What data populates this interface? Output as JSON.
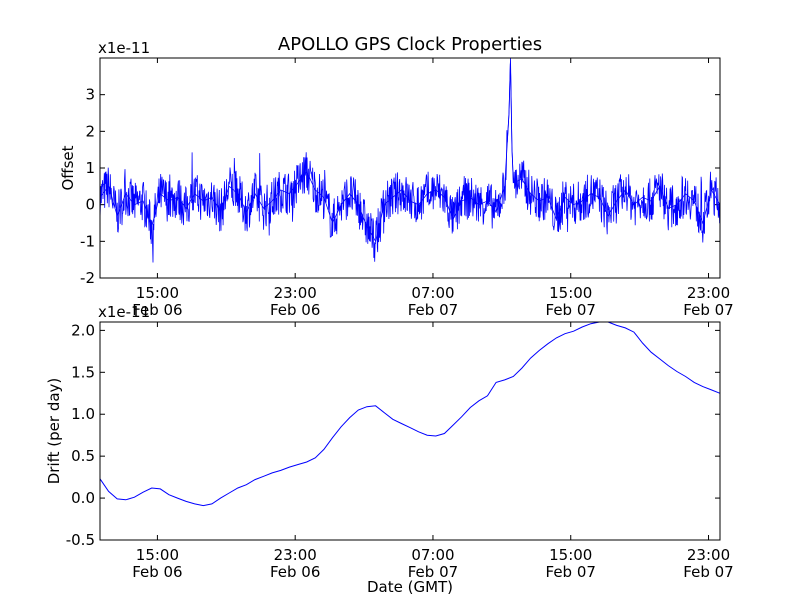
{
  "chart_data": [
    {
      "type": "line",
      "title": "APOLLO GPS Clock Properties",
      "xlabel": "",
      "ylabel": "Offset",
      "y_scale_label": "x1e-11",
      "ylim": [
        -2,
        4
      ],
      "xlim": [
        "Feb 06 11:40",
        "Feb 07 23:40"
      ],
      "yticks": [
        -2,
        -1,
        0,
        1,
        2,
        3
      ],
      "ytick_labels": [
        "-2",
        "-1",
        "0",
        "1",
        "2",
        "3"
      ],
      "xticks": [
        {
          "time": "15:00",
          "date": "Feb 06"
        },
        {
          "time": "23:00",
          "date": "Feb 06"
        },
        {
          "time": "07:00",
          "date": "Feb 07"
        },
        {
          "time": "15:00",
          "date": "Feb 07"
        },
        {
          "time": "23:00",
          "date": "Feb 07"
        }
      ],
      "grid": false,
      "color": "#0000ff",
      "series": [
        {
          "points": [
            [
              "Feb 06 11:40",
              0.2
            ],
            [
              "Feb 06 12:10",
              0.5
            ],
            [
              "Feb 06 12:40",
              -0.3
            ],
            [
              "Feb 06 13:10",
              0.3
            ],
            [
              "Feb 06 13:40",
              0.0
            ],
            [
              "Feb 06 14:10",
              0.1
            ],
            [
              "Feb 06 14:40",
              -0.6
            ],
            [
              "Feb 06 15:10",
              0.3
            ],
            [
              "Feb 06 15:40",
              0.1
            ],
            [
              "Feb 06 16:10",
              0.2
            ],
            [
              "Feb 06 16:40",
              -0.1
            ],
            [
              "Feb 06 17:10",
              0.3
            ],
            [
              "Feb 06 17:40",
              0.1
            ],
            [
              "Feb 06 18:10",
              0.2
            ],
            [
              "Feb 06 18:40",
              -0.2
            ],
            [
              "Feb 06 19:10",
              0.5
            ],
            [
              "Feb 06 19:40",
              0.3
            ],
            [
              "Feb 06 20:10",
              -0.2
            ],
            [
              "Feb 06 20:40",
              0.3
            ],
            [
              "Feb 06 21:10",
              -0.1
            ],
            [
              "Feb 06 21:40",
              0.1
            ],
            [
              "Feb 06 22:10",
              0.4
            ],
            [
              "Feb 06 22:40",
              0.3
            ],
            [
              "Feb 06 23:10",
              0.6
            ],
            [
              "Feb 06 23:40",
              0.9
            ],
            [
              "Feb 07 00:10",
              0.4
            ],
            [
              "Feb 07 00:40",
              0.2
            ],
            [
              "Feb 07 01:10",
              -0.5
            ],
            [
              "Feb 07 01:40",
              0.0
            ],
            [
              "Feb 07 02:10",
              0.3
            ],
            [
              "Feb 07 02:40",
              0.0
            ],
            [
              "Feb 07 03:10",
              -0.6
            ],
            [
              "Feb 07 03:40",
              -1.0
            ],
            [
              "Feb 07 04:10",
              0.0
            ],
            [
              "Feb 07 04:40",
              0.2
            ],
            [
              "Feb 07 05:10",
              0.4
            ],
            [
              "Feb 07 05:40",
              0.1
            ],
            [
              "Feb 07 06:10",
              0.0
            ],
            [
              "Feb 07 06:40",
              0.3
            ],
            [
              "Feb 07 07:10",
              0.4
            ],
            [
              "Feb 07 07:40",
              0.2
            ],
            [
              "Feb 07 08:10",
              -0.4
            ],
            [
              "Feb 07 08:40",
              0.1
            ],
            [
              "Feb 07 09:10",
              0.2
            ],
            [
              "Feb 07 09:40",
              0.0
            ],
            [
              "Feb 07 10:10",
              0.1
            ],
            [
              "Feb 07 10:40",
              -0.2
            ],
            [
              "Feb 07 11:10",
              0.5
            ],
            [
              "Feb 07 11:25",
              2.5
            ],
            [
              "Feb 07 11:30",
              4.0
            ],
            [
              "Feb 07 11:35",
              1.6
            ],
            [
              "Feb 07 11:40",
              0.6
            ],
            [
              "Feb 07 12:10",
              0.7
            ],
            [
              "Feb 07 12:40",
              0.3
            ],
            [
              "Feb 07 13:10",
              0.1
            ],
            [
              "Feb 07 13:40",
              0.2
            ],
            [
              "Feb 07 14:10",
              -0.4
            ],
            [
              "Feb 07 14:40",
              0.2
            ],
            [
              "Feb 07 15:10",
              0.0
            ],
            [
              "Feb 07 15:40",
              0.1
            ],
            [
              "Feb 07 16:10",
              0.3
            ],
            [
              "Feb 07 16:40",
              0.2
            ],
            [
              "Feb 07 17:10",
              -0.3
            ],
            [
              "Feb 07 17:40",
              0.1
            ],
            [
              "Feb 07 18:10",
              0.4
            ],
            [
              "Feb 07 18:40",
              0.0
            ],
            [
              "Feb 07 19:10",
              0.2
            ],
            [
              "Feb 07 19:40",
              0.1
            ],
            [
              "Feb 07 20:10",
              0.5
            ],
            [
              "Feb 07 20:40",
              -0.1
            ],
            [
              "Feb 07 21:10",
              0.0
            ],
            [
              "Feb 07 21:40",
              0.3
            ],
            [
              "Feb 07 22:10",
              0.1
            ],
            [
              "Feb 07 22:40",
              -0.5
            ],
            [
              "Feb 07 23:10",
              0.4
            ],
            [
              "Feb 07 23:40",
              0.0
            ]
          ]
        }
      ]
    },
    {
      "type": "line",
      "title": "",
      "xlabel": "Date (GMT)",
      "ylabel": "Drift (per day)",
      "y_scale_label": "x1e-11",
      "ylim": [
        -0.5,
        2.1
      ],
      "xlim": [
        "Feb 06 11:40",
        "Feb 07 23:40"
      ],
      "yticks": [
        -0.5,
        0.0,
        0.5,
        1.0,
        1.5,
        2.0
      ],
      "ytick_labels": [
        "-0.5",
        "0.0",
        "0.5",
        "1.0",
        "1.5",
        "2.0"
      ],
      "xticks": [
        {
          "time": "15:00",
          "date": "Feb 06"
        },
        {
          "time": "23:00",
          "date": "Feb 06"
        },
        {
          "time": "07:00",
          "date": "Feb 07"
        },
        {
          "time": "15:00",
          "date": "Feb 07"
        },
        {
          "time": "23:00",
          "date": "Feb 07"
        }
      ],
      "grid": false,
      "color": "#0000ff",
      "series": [
        {
          "points": [
            [
              "Feb 06 11:40",
              0.23
            ],
            [
              "Feb 06 12:10",
              0.08
            ],
            [
              "Feb 06 12:40",
              -0.01
            ],
            [
              "Feb 06 13:10",
              -0.02
            ],
            [
              "Feb 06 13:40",
              0.01
            ],
            [
              "Feb 06 14:10",
              0.07
            ],
            [
              "Feb 06 14:40",
              0.12
            ],
            [
              "Feb 06 15:10",
              0.11
            ],
            [
              "Feb 06 15:40",
              0.04
            ],
            [
              "Feb 06 16:10",
              0.0
            ],
            [
              "Feb 06 16:40",
              -0.04
            ],
            [
              "Feb 06 17:10",
              -0.07
            ],
            [
              "Feb 06 17:40",
              -0.09
            ],
            [
              "Feb 06 18:10",
              -0.07
            ],
            [
              "Feb 06 18:40",
              0.0
            ],
            [
              "Feb 06 19:10",
              0.06
            ],
            [
              "Feb 06 19:40",
              0.12
            ],
            [
              "Feb 06 20:10",
              0.16
            ],
            [
              "Feb 06 20:40",
              0.22
            ],
            [
              "Feb 06 21:10",
              0.26
            ],
            [
              "Feb 06 21:40",
              0.3
            ],
            [
              "Feb 06 22:10",
              0.33
            ],
            [
              "Feb 06 22:40",
              0.37
            ],
            [
              "Feb 06 23:10",
              0.4
            ],
            [
              "Feb 06 23:40",
              0.43
            ],
            [
              "Feb 07 00:10",
              0.48
            ],
            [
              "Feb 07 00:40",
              0.58
            ],
            [
              "Feb 07 01:10",
              0.72
            ],
            [
              "Feb 07 01:40",
              0.85
            ],
            [
              "Feb 07 02:10",
              0.96
            ],
            [
              "Feb 07 02:40",
              1.05
            ],
            [
              "Feb 07 03:10",
              1.09
            ],
            [
              "Feb 07 03:40",
              1.1
            ],
            [
              "Feb 07 04:10",
              1.02
            ],
            [
              "Feb 07 04:40",
              0.94
            ],
            [
              "Feb 07 05:10",
              0.89
            ],
            [
              "Feb 07 05:40",
              0.84
            ],
            [
              "Feb 07 06:10",
              0.79
            ],
            [
              "Feb 07 06:40",
              0.75
            ],
            [
              "Feb 07 07:10",
              0.74
            ],
            [
              "Feb 07 07:40",
              0.77
            ],
            [
              "Feb 07 08:10",
              0.87
            ],
            [
              "Feb 07 08:40",
              0.97
            ],
            [
              "Feb 07 09:10",
              1.08
            ],
            [
              "Feb 07 09:40",
              1.16
            ],
            [
              "Feb 07 10:10",
              1.22
            ],
            [
              "Feb 07 10:40",
              1.38
            ],
            [
              "Feb 07 11:10",
              1.41
            ],
            [
              "Feb 07 11:40",
              1.45
            ],
            [
              "Feb 07 12:10",
              1.55
            ],
            [
              "Feb 07 12:40",
              1.67
            ],
            [
              "Feb 07 13:10",
              1.76
            ],
            [
              "Feb 07 13:40",
              1.84
            ],
            [
              "Feb 07 14:10",
              1.91
            ],
            [
              "Feb 07 14:40",
              1.96
            ],
            [
              "Feb 07 15:10",
              1.99
            ],
            [
              "Feb 07 15:40",
              2.04
            ],
            [
              "Feb 07 16:10",
              2.08
            ],
            [
              "Feb 07 16:40",
              2.1
            ],
            [
              "Feb 07 17:10",
              2.1
            ],
            [
              "Feb 07 17:40",
              2.06
            ],
            [
              "Feb 07 18:10",
              2.03
            ],
            [
              "Feb 07 18:40",
              1.98
            ],
            [
              "Feb 07 19:10",
              1.85
            ],
            [
              "Feb 07 19:40",
              1.74
            ],
            [
              "Feb 07 20:10",
              1.66
            ],
            [
              "Feb 07 20:40",
              1.58
            ],
            [
              "Feb 07 21:10",
              1.51
            ],
            [
              "Feb 07 21:40",
              1.45
            ],
            [
              "Feb 07 22:10",
              1.38
            ],
            [
              "Feb 07 22:40",
              1.33
            ],
            [
              "Feb 07 23:10",
              1.29
            ],
            [
              "Feb 07 23:40",
              1.25
            ]
          ]
        }
      ]
    }
  ]
}
